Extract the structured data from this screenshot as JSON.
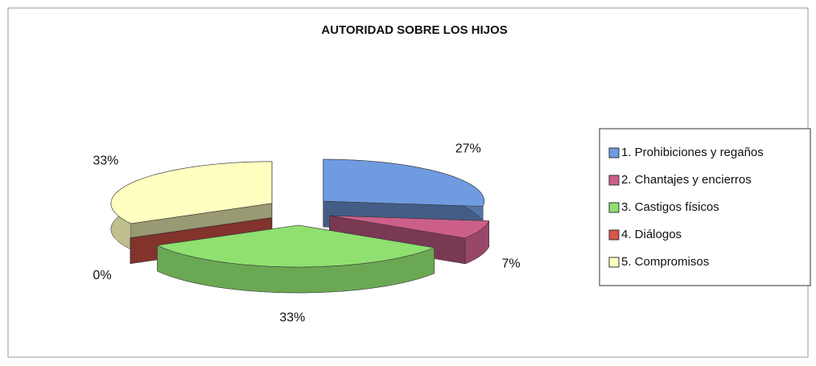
{
  "chart_data": {
    "type": "pie",
    "title": "AUTORIDAD SOBRE LOS HIJOS",
    "categories": [
      "1. Prohibiciones y regaños",
      "2. Chantajes y encierros",
      "3. Castigos físicos",
      "4. Diálogos",
      "5. Compromisos"
    ],
    "values": [
      27,
      7,
      33,
      0,
      33
    ],
    "value_labels": [
      "27%",
      "7%",
      "33%",
      "0%",
      "33%"
    ],
    "colors": [
      "#6f9be0",
      "#cc5f8a",
      "#8fe070",
      "#d9554a",
      "#ffffc0"
    ],
    "legend": "right"
  }
}
